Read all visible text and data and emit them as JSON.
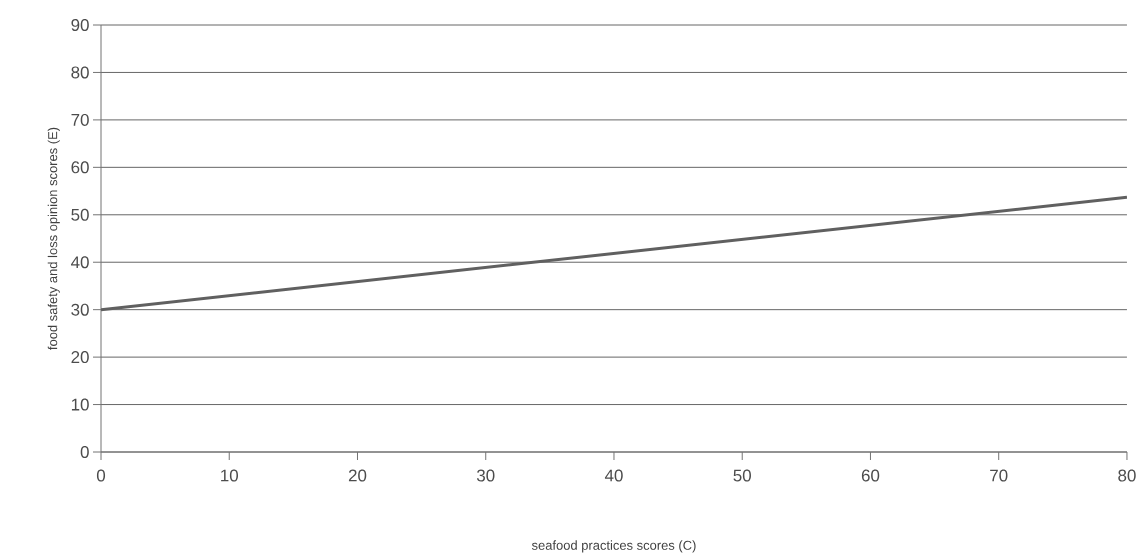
{
  "chart_data": {
    "type": "line",
    "xlabel": "seafood practices scores (C)",
    "ylabel": "food safety and loss opinion scores (E)",
    "x": [
      0,
      80
    ],
    "series": [
      {
        "color": "#606060",
        "values": [
          30,
          53.7
        ]
      }
    ],
    "xlim": [
      0,
      80
    ],
    "xticks": [
      0,
      10,
      20,
      30,
      40,
      50,
      60,
      70,
      80
    ],
    "ylim": [
      0,
      90
    ],
    "yticks": [
      0,
      10,
      20,
      30,
      40,
      50,
      60,
      70,
      80,
      90
    ],
    "grid": "y",
    "marker": "none",
    "line_style": "solid"
  }
}
